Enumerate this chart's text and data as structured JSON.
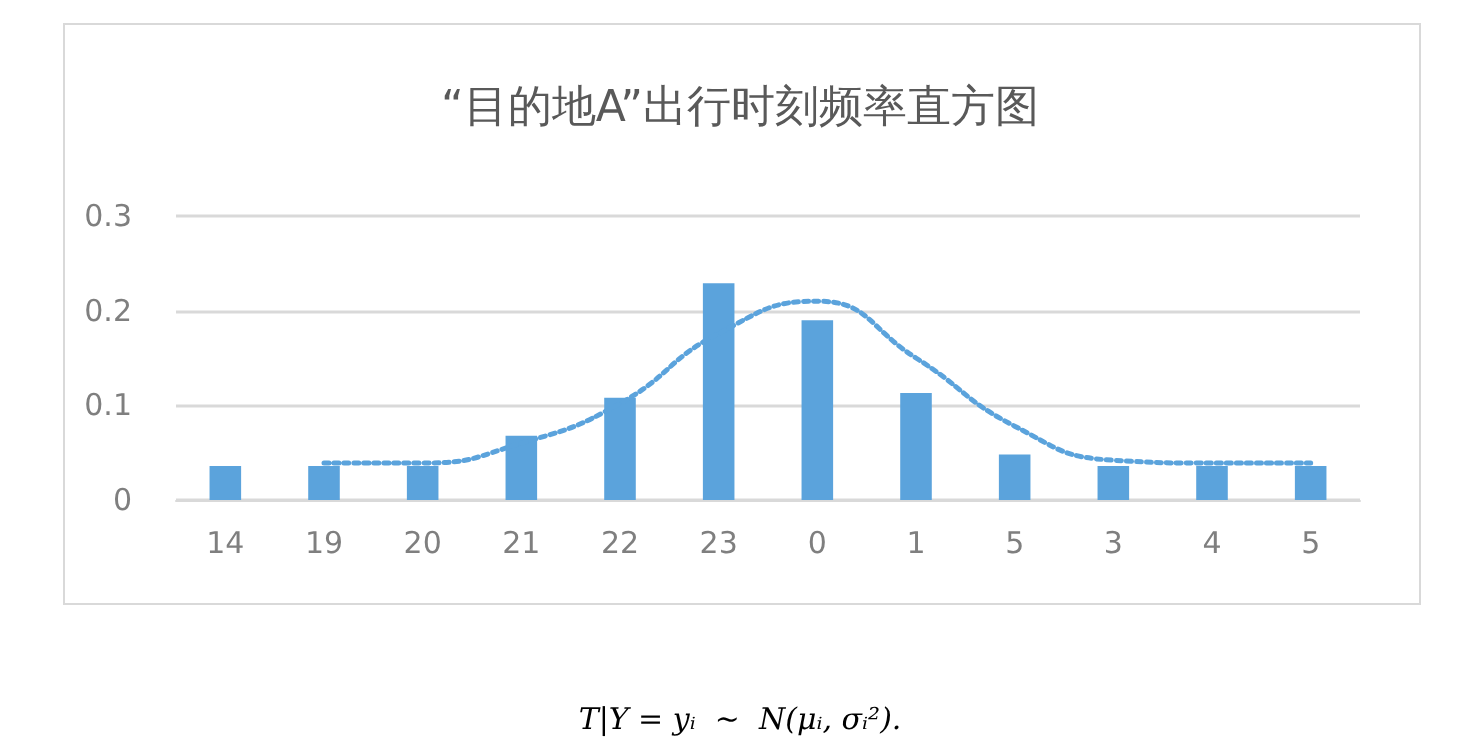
{
  "chart_data": {
    "type": "bar",
    "title": "“目的地A”出行时刻频率直方图",
    "categories": [
      "14",
      "19",
      "20",
      "21",
      "22",
      "23",
      "0",
      "1",
      "5",
      "3",
      "4",
      "5"
    ],
    "series": [
      {
        "color": "#5ba3dc",
        "values": [
          0.036,
          0.036,
          0.036,
          0.068,
          0.108,
          0.229,
          0.19,
          0.113,
          0.048,
          0.036,
          0.036,
          0.036
        ]
      },
      {
        "type": "line",
        "color": "#5ba3dc",
        "line_style": "dotted",
        "marker": "none",
        "values": [
          null,
          0.039,
          0.039,
          0.06,
          0.102,
          0.176,
          0.21,
          0.15,
          0.078,
          0.042,
          0.039,
          0.039
        ]
      }
    ],
    "ylim": [
      0,
      0.3
    ],
    "yticks": [
      0,
      0.1,
      0.2,
      0.3
    ],
    "grid": "y",
    "annotations": [
      "T|Y = yᵢ  ~  N(μᵢ, σᵢ²)."
    ]
  }
}
